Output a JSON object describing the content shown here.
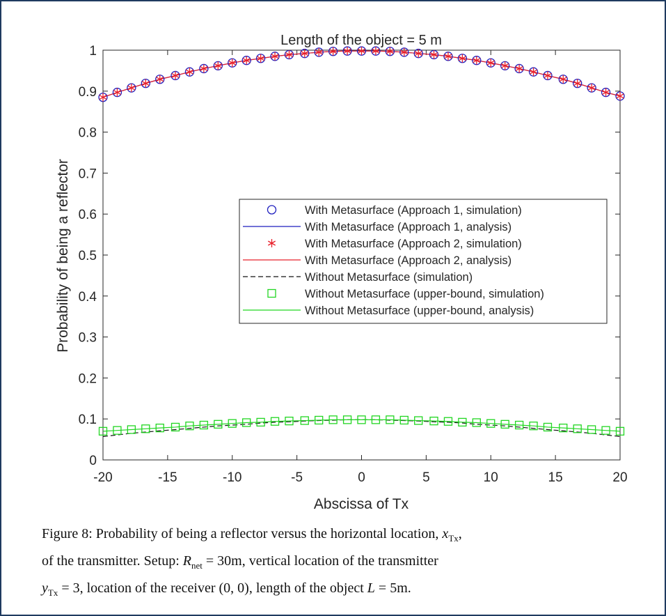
{
  "chart_data": {
    "type": "line",
    "title": "Length of the object = 5 m",
    "xlabel": "Abscissa of Tx",
    "ylabel": "Probability of being a reflector",
    "xlim": [
      -20,
      20
    ],
    "ylim": [
      0,
      1
    ],
    "xticks": [
      "-20",
      "-15",
      "-10",
      "-5",
      "0",
      "5",
      "10",
      "15",
      "20"
    ],
    "yticks": [
      "0",
      "0.1",
      "0.2",
      "0.3",
      "0.4",
      "0.5",
      "0.6",
      "0.7",
      "0.8",
      "0.9",
      "1"
    ],
    "legend_position": "center-right",
    "grid": false,
    "x": [
      -20.0,
      -18.9,
      -17.8,
      -16.7,
      -15.6,
      -14.4,
      -13.3,
      -12.2,
      -11.1,
      -10.0,
      -8.9,
      -7.8,
      -6.7,
      -5.6,
      -4.4,
      -3.3,
      -2.2,
      -1.1,
      0.0,
      1.1,
      2.2,
      3.3,
      4.4,
      5.6,
      6.7,
      7.8,
      8.9,
      10.0,
      11.1,
      12.2,
      13.3,
      14.4,
      15.6,
      16.7,
      17.8,
      18.9,
      20.0
    ],
    "series": [
      {
        "name": "With Metasurface (Approach 1, simulation)",
        "style": "marker",
        "marker": "circle",
        "color": "#1f1fbf",
        "values": [
          0.885,
          0.897,
          0.908,
          0.919,
          0.929,
          0.938,
          0.947,
          0.955,
          0.962,
          0.969,
          0.975,
          0.98,
          0.985,
          0.989,
          0.992,
          0.995,
          0.997,
          0.998,
          0.998,
          0.998,
          0.997,
          0.995,
          0.992,
          0.989,
          0.985,
          0.98,
          0.975,
          0.969,
          0.962,
          0.955,
          0.947,
          0.938,
          0.929,
          0.919,
          0.908,
          0.897,
          0.888
        ]
      },
      {
        "name": "With Metasurface (Approach 1, analysis)",
        "style": "line",
        "dash": "solid",
        "color": "#1f1fbf",
        "values": [
          0.885,
          0.897,
          0.908,
          0.919,
          0.929,
          0.938,
          0.947,
          0.955,
          0.962,
          0.969,
          0.975,
          0.98,
          0.985,
          0.989,
          0.992,
          0.995,
          0.997,
          0.998,
          0.998,
          0.998,
          0.997,
          0.995,
          0.992,
          0.989,
          0.985,
          0.98,
          0.975,
          0.969,
          0.962,
          0.955,
          0.947,
          0.938,
          0.929,
          0.919,
          0.908,
          0.897,
          0.888
        ]
      },
      {
        "name": "With Metasurface (Approach 2, simulation)",
        "style": "marker",
        "marker": "asterisk",
        "color": "#e8202a",
        "values": [
          0.885,
          0.897,
          0.908,
          0.919,
          0.929,
          0.938,
          0.947,
          0.955,
          0.962,
          0.969,
          0.975,
          0.98,
          0.985,
          0.989,
          0.992,
          0.995,
          0.997,
          0.998,
          0.998,
          0.998,
          0.997,
          0.995,
          0.992,
          0.989,
          0.985,
          0.98,
          0.975,
          0.969,
          0.962,
          0.955,
          0.947,
          0.938,
          0.929,
          0.919,
          0.908,
          0.897,
          0.888
        ]
      },
      {
        "name": "With Metasurface (Approach 2, analysis)",
        "style": "line",
        "dash": "solid",
        "color": "#e8202a",
        "values": [
          0.885,
          0.897,
          0.908,
          0.919,
          0.929,
          0.938,
          0.947,
          0.955,
          0.962,
          0.969,
          0.975,
          0.98,
          0.985,
          0.989,
          0.992,
          0.995,
          0.997,
          0.998,
          0.998,
          0.998,
          0.997,
          0.995,
          0.992,
          0.989,
          0.985,
          0.98,
          0.975,
          0.969,
          0.962,
          0.955,
          0.947,
          0.938,
          0.929,
          0.919,
          0.908,
          0.897,
          0.888
        ]
      },
      {
        "name": "Without Metasurface (simulation)",
        "style": "line",
        "dash": "dashed",
        "color": "#111111",
        "values": [
          0.057,
          0.061,
          0.065,
          0.068,
          0.071,
          0.074,
          0.077,
          0.08,
          0.083,
          0.085,
          0.087,
          0.09,
          0.092,
          0.093,
          0.095,
          0.096,
          0.097,
          0.098,
          0.098,
          0.098,
          0.097,
          0.096,
          0.095,
          0.093,
          0.092,
          0.09,
          0.087,
          0.085,
          0.083,
          0.08,
          0.077,
          0.074,
          0.071,
          0.068,
          0.065,
          0.061,
          0.057
        ]
      },
      {
        "name": "Without Metasurface (upper-bound, simulation)",
        "style": "marker",
        "marker": "square",
        "color": "#22d622",
        "values": [
          0.07,
          0.072,
          0.074,
          0.076,
          0.078,
          0.08,
          0.083,
          0.085,
          0.087,
          0.089,
          0.091,
          0.092,
          0.094,
          0.095,
          0.096,
          0.097,
          0.098,
          0.098,
          0.098,
          0.098,
          0.098,
          0.097,
          0.096,
          0.095,
          0.094,
          0.092,
          0.091,
          0.089,
          0.087,
          0.085,
          0.083,
          0.08,
          0.078,
          0.076,
          0.074,
          0.072,
          0.07
        ]
      },
      {
        "name": "Without Metasurface (upper-bound, analysis)",
        "style": "line",
        "dash": "solid",
        "color": "#22d622",
        "values": [
          0.07,
          0.072,
          0.074,
          0.076,
          0.078,
          0.08,
          0.083,
          0.085,
          0.087,
          0.089,
          0.091,
          0.092,
          0.094,
          0.095,
          0.096,
          0.097,
          0.098,
          0.098,
          0.098,
          0.098,
          0.098,
          0.097,
          0.096,
          0.095,
          0.094,
          0.092,
          0.091,
          0.089,
          0.087,
          0.085,
          0.083,
          0.08,
          0.078,
          0.076,
          0.074,
          0.072,
          0.07
        ]
      }
    ]
  },
  "caption": {
    "label": "Figure 8:",
    "line1_text": "Probability of being a reflector versus the horizontal location,",
    "line1_math": "x",
    "line1_sub": "Tx",
    "line1_end": ",",
    "line2_text": "of the transmitter. Setup:",
    "line2_math": "R",
    "line2_sub": "net",
    "line2_value": "= 30m, vertical location of the transmitter",
    "line3_math": "y",
    "line3_sub": "Tx",
    "line3_value": "= 3, location of the receiver (0, 0), length of the object",
    "line3_math2": "L",
    "line3_value2": "= 5m."
  }
}
